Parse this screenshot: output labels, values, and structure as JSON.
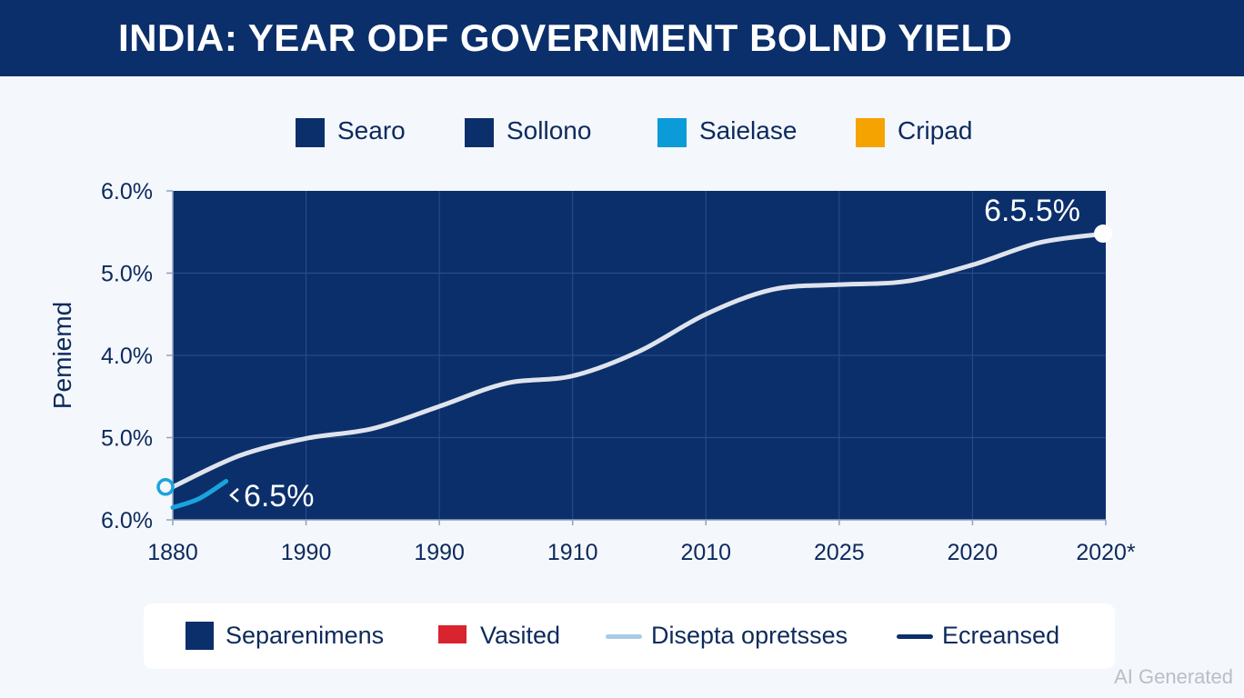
{
  "page": {
    "title": "INDIA: YEAR ODF GOVERNMENT BOLND YIELD",
    "watermark": "AI Generated"
  },
  "top_legend": [
    {
      "label": "Searo",
      "color": "#0b2f6b"
    },
    {
      "label": "Sollono",
      "color": "#0b2f6b"
    },
    {
      "label": "Saielase",
      "color": "#0b9bd8"
    },
    {
      "label": "Cripad",
      "color": "#f5a300"
    }
  ],
  "bottom_legend": [
    {
      "label": "Separenimens",
      "color": "#0b2f6b",
      "marker": "square"
    },
    {
      "label": "Vasited",
      "color": "#d9232e",
      "marker": "rect"
    },
    {
      "label": "Disepta opretsses",
      "color": "#a9cbe6",
      "marker": "line"
    },
    {
      "label": "Ecreansed",
      "color": "#0b2f6b",
      "marker": "line"
    }
  ],
  "colors": {
    "banner": "#0b2f6b",
    "plot_bg": "#0b2f6b",
    "main_line": "#dfe4ec",
    "accent_line": "#1aa3dc",
    "grid": "#2a4f8a",
    "text": "#0d2a5c"
  },
  "chart_data": {
    "type": "line",
    "title": "INDIA: YEAR ODF GOVERNMENT BOLND YIELD",
    "ylabel": "Pemiemd",
    "xlabel": "",
    "x_tick_labels": [
      "1880",
      "1990",
      "1990",
      "1910",
      "2010",
      "2025",
      "2020",
      "2020*"
    ],
    "y_tick_labels": [
      "6.0%",
      "5.0%",
      "4.0%",
      "5.0%",
      "6.0%"
    ],
    "ylim": [
      0,
      4
    ],
    "grid": true,
    "legend_placement": "top and bottom",
    "series": [
      {
        "color": "#dfe4ec",
        "x": [
          0,
          0.5,
          1,
          1.5,
          2,
          2.5,
          3,
          3.5,
          4,
          4.5,
          5,
          5.5,
          6,
          6.5,
          7
        ],
        "y": [
          0.4,
          0.78,
          0.99,
          1.11,
          1.38,
          1.66,
          1.75,
          2.05,
          2.5,
          2.8,
          2.86,
          2.9,
          3.1,
          3.37,
          3.48
        ]
      },
      {
        "color": "#1aa3dc",
        "x": [
          0,
          0.2,
          0.4
        ],
        "y": [
          0.15,
          0.26,
          0.47
        ]
      }
    ],
    "annotations": [
      {
        "text": "6.5.5%",
        "x": 7,
        "y": 3.48
      },
      {
        "text": "6.5%",
        "x": 0.45,
        "y": 0.3
      }
    ]
  }
}
